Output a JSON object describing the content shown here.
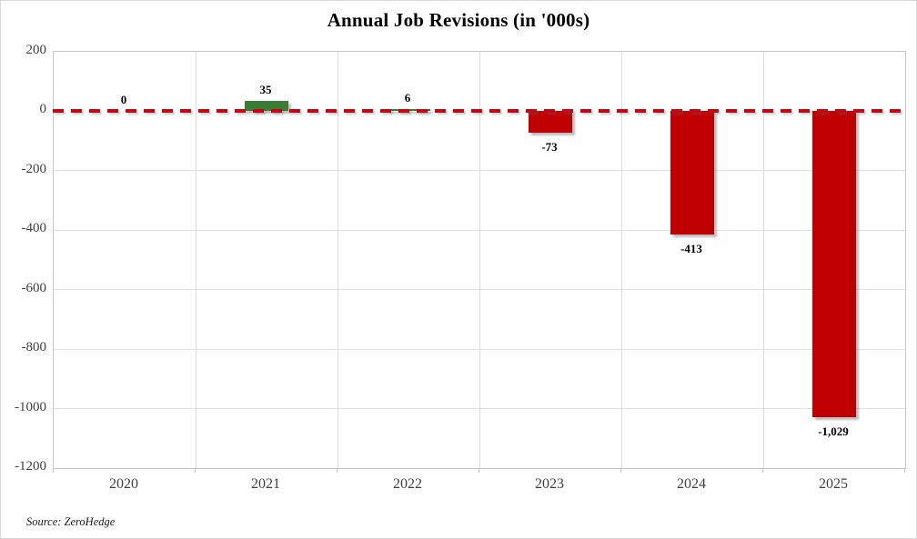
{
  "figure": {
    "title": "Annual Job Revisions (in '000s)",
    "source": "Source: ZeroHedge"
  },
  "chart_data": {
    "type": "bar",
    "title": "Annual Job Revisions (in '000s)",
    "categories": [
      "2020",
      "2021",
      "2022",
      "2023",
      "2024",
      "2025"
    ],
    "values": [
      0,
      35,
      6,
      -73,
      -413,
      -1029
    ],
    "value_labels": [
      "0",
      "35",
      "6",
      "-73",
      "-413",
      "-1,029"
    ],
    "xlabel": "",
    "ylabel": "",
    "ylim": [
      -1200,
      200
    ],
    "y_ticks": [
      200,
      0,
      -200,
      -400,
      -600,
      -800,
      -1000,
      -1200
    ],
    "legend": "none",
    "grid": "light gray horizontal and vertical gridlines",
    "zero_line_style": "horizontal red dashed line at 0",
    "annotations": "Source: ZeroHedge",
    "colors": {
      "positive_bar": "#3B7D35",
      "negative_bar": "#C00000",
      "zero_line": "#C00914",
      "axis_text": "#404040",
      "gridline": "#e2e2e2",
      "plot_border": "#c6c6c6"
    }
  }
}
